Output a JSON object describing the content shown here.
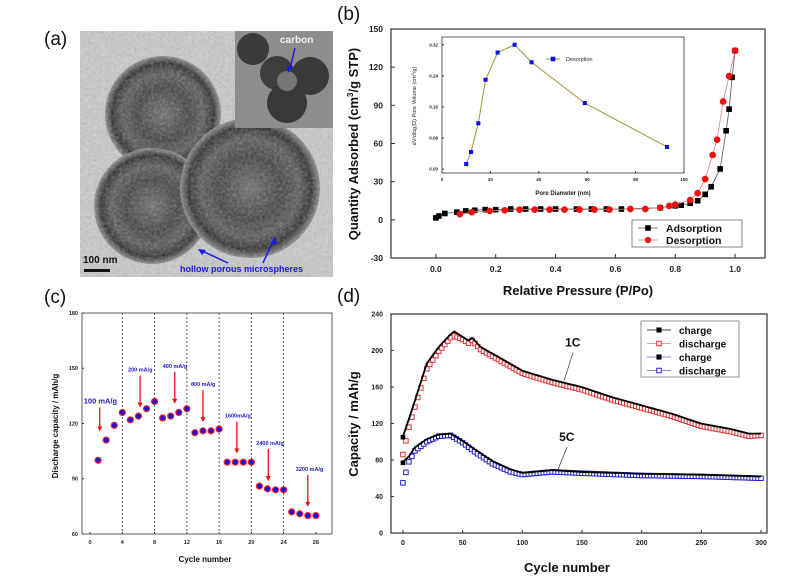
{
  "figure": {
    "panel_labels": {
      "a": "(a)",
      "b": "(b)",
      "c": "(c)",
      "d": "(d)"
    },
    "tem_image": {
      "scale_bar": "100 nm",
      "annotation_main": "hollow porous microspheres",
      "annotation_inset": "carbon",
      "colors": {
        "annotation": "#1a1ae6"
      }
    }
  },
  "chart_data": [
    {
      "id": "b",
      "type": "scatter",
      "title": "",
      "xlabel": "Relative Pressure (P/Po)",
      "ylabel": "Quantity Adsorbed (cm3/g STP)",
      "ylabel_parts": {
        "pre": "Quantity Adsorbed (cm",
        "sup": "3",
        "post": "/g STP)"
      },
      "xlim": [
        -0.15,
        1.1
      ],
      "ylim": [
        -30,
        150
      ],
      "xticks": [
        0.0,
        0.2,
        0.4,
        0.6,
        0.8,
        1.0
      ],
      "xtick_labels": [
        "0.0",
        "0.2",
        "0.4",
        "0.6",
        "0.8",
        "1.0"
      ],
      "yticks": [
        -30,
        0,
        30,
        60,
        90,
        120,
        150
      ],
      "ytick_labels": [
        "-30",
        "0",
        "30",
        "60",
        "90",
        "120",
        "150"
      ],
      "grid": false,
      "legend_position": "bottom-right",
      "series": [
        {
          "name": "Adsorption",
          "marker": "square",
          "color": "#000000",
          "line_color": "#555555",
          "x": [
            0.0,
            0.01,
            0.03,
            0.07,
            0.1,
            0.13,
            0.165,
            0.2,
            0.25,
            0.3,
            0.35,
            0.4,
            0.47,
            0.52,
            0.57,
            0.62,
            0.75,
            0.8,
            0.82,
            0.85,
            0.875,
            0.9,
            0.92,
            0.95,
            0.97,
            0.98,
            0.99,
            1.0
          ],
          "y": [
            1.5,
            3,
            5,
            6,
            7,
            7.5,
            8,
            8,
            8.5,
            8.5,
            8.5,
            8.5,
            8.5,
            8.5,
            8.5,
            8.5,
            9.5,
            11,
            11.5,
            13,
            15,
            20,
            26,
            40,
            70,
            87,
            112,
            133
          ]
        },
        {
          "name": "Desorption",
          "marker": "circle",
          "color": "#ee1111",
          "line_color": "#e88080",
          "x": [
            0.08,
            0.12,
            0.18,
            0.23,
            0.28,
            0.33,
            0.38,
            0.43,
            0.48,
            0.53,
            0.58,
            0.65,
            0.7,
            0.75,
            0.78,
            0.8,
            0.85,
            0.875,
            0.9,
            0.925,
            0.94,
            0.96,
            0.98,
            1.0
          ],
          "y": [
            4.5,
            6,
            7,
            7.5,
            8,
            8,
            8,
            8,
            8,
            8,
            8,
            8.5,
            8.5,
            9.5,
            11,
            12,
            15.5,
            21,
            32,
            51,
            63,
            93,
            113,
            133
          ]
        }
      ],
      "inset": {
        "type": "line",
        "xlabel": "Pore Diameter (nm)",
        "ylabel": "dV/dlog(D) Pore Volume (cm3/g)",
        "ylabel_parts": {
          "pre": "dV/dlog(D) Pore Volume (cm",
          "sup": "3",
          "post": "/g)"
        },
        "xlim": [
          0,
          100
        ],
        "ylim": [
          -0.01,
          0.34
        ],
        "xticks": [
          0,
          20,
          40,
          60,
          80,
          100
        ],
        "xtick_labels": [
          "0",
          "20",
          "40",
          "60",
          "80",
          "100"
        ],
        "yticks": [
          0.0,
          0.08,
          0.16,
          0.24,
          0.32
        ],
        "ytick_labels": [
          "0.00",
          "0.08",
          "0.16",
          "0.24",
          "0.32"
        ],
        "legend_position": "top-right",
        "series": [
          {
            "name": "Desorption",
            "marker": "square",
            "color": "#1010ee",
            "line_color": "#9a9a30",
            "x": [
              10,
              12,
              15,
              18,
              23,
              30,
              37,
              59,
              93
            ],
            "y": [
              0.013,
              0.044,
              0.118,
              0.23,
              0.3,
              0.32,
              0.275,
              0.17,
              0.057
            ]
          }
        ]
      }
    },
    {
      "id": "c",
      "type": "scatter",
      "title": "",
      "xlabel": "Cycle number",
      "ylabel": "Discharge capacity / mAh/g",
      "xlim": [
        -1,
        30
      ],
      "ylim": [
        60,
        180
      ],
      "xticks": [
        0,
        4,
        8,
        12,
        16,
        20,
        24,
        28
      ],
      "xtick_labels": [
        "0",
        "4",
        "8",
        "12",
        "16",
        "20",
        "24",
        "28"
      ],
      "yticks": [
        60,
        90,
        120,
        150,
        180
      ],
      "ytick_labels": [
        "60",
        "90",
        "120",
        "150",
        "180"
      ],
      "grid": false,
      "vertical_dashed_lines_at": [
        4,
        8,
        12,
        16,
        20,
        24
      ],
      "series": [
        {
          "name": "Discharge capacity",
          "marker": "circle",
          "color": "#1a10dd",
          "edge_color": "#ee2222",
          "x": [
            1,
            2,
            3,
            4,
            5,
            6,
            7,
            8,
            9,
            10,
            11,
            12,
            13,
            14,
            15,
            16,
            17,
            18,
            19,
            20,
            21,
            22,
            23,
            24,
            25,
            26,
            27,
            28
          ],
          "y": [
            100,
            111,
            119,
            126,
            122,
            124,
            128,
            132,
            123,
            124,
            126,
            128,
            115,
            116,
            116,
            117,
            99,
            99,
            99,
            99,
            86,
            84.5,
            84,
            84,
            72,
            71,
            70,
            70
          ]
        }
      ],
      "annotations": [
        {
          "text": "100 mA/g",
          "arrow_x": 1.2,
          "arrow_to_y": 113
        },
        {
          "text": "200 mA/g",
          "arrow_x": 6.2,
          "arrow_to_y": 126
        },
        {
          "text": "400 mA/g",
          "arrow_x": 10.5,
          "arrow_to_y": 128
        },
        {
          "text": "800 mA/g",
          "arrow_x": 14,
          "arrow_to_y": 118
        },
        {
          "text": "1600mA/g",
          "arrow_x": 18.2,
          "arrow_to_y": 101
        },
        {
          "text": "2400 mA/g",
          "arrow_x": 22.1,
          "arrow_to_y": 86
        },
        {
          "text": "3200 mA/g",
          "arrow_x": 27,
          "arrow_to_y": 72
        }
      ],
      "annotation_colors": {
        "text": "#1a1acc",
        "arrow": "#ee1111"
      }
    },
    {
      "id": "d",
      "type": "line",
      "title": "",
      "xlabel": "Cycle number",
      "ylabel": "Capacity / mAh/g",
      "xlim": [
        -10,
        305
      ],
      "ylim": [
        0,
        240
      ],
      "xticks": [
        0,
        50,
        100,
        150,
        200,
        250,
        300
      ],
      "xtick_labels": [
        "0",
        "50",
        "100",
        "150",
        "200",
        "250",
        "300"
      ],
      "yticks": [
        0,
        40,
        80,
        120,
        160,
        200,
        240
      ],
      "ytick_labels": [
        "0",
        "40",
        "80",
        "120",
        "160",
        "200",
        "240"
      ],
      "grid": false,
      "legend_position": "top-right",
      "series": [
        {
          "name": "charge",
          "rate": "1C",
          "marker": "filled-square",
          "color": "#000000",
          "line_color": "#000000",
          "x": [
            0,
            5,
            10,
            20,
            30,
            40,
            43,
            50,
            55,
            58,
            65,
            80,
            100,
            125,
            150,
            175,
            200,
            225,
            250,
            275,
            290,
            300
          ],
          "y": [
            105,
            124,
            144,
            185,
            203,
            217,
            220,
            214,
            210,
            213,
            203,
            192,
            177,
            167,
            159,
            148,
            139,
            130,
            119,
            113,
            108,
            108
          ]
        },
        {
          "name": "discharge",
          "rate": "1C",
          "marker": "open-square",
          "color": "#dd3030",
          "line_color": "#e88080",
          "x": [
            0,
            5,
            10,
            20,
            30,
            40,
            43,
            50,
            55,
            58,
            65,
            80,
            100,
            125,
            150,
            175,
            200,
            225,
            250,
            275,
            290,
            300
          ],
          "y": [
            86,
            116,
            138,
            180,
            199,
            214,
            216,
            212,
            208,
            211,
            201,
            190,
            175,
            165,
            157,
            146,
            137,
            128,
            117,
            111,
            106,
            107
          ]
        },
        {
          "name": "charge",
          "rate": "5C",
          "marker": "filled-square",
          "color": "#000000",
          "line_color": "#6060cc",
          "x": [
            0,
            5,
            10,
            20,
            30,
            40,
            50,
            60,
            75,
            90,
            100,
            125,
            150,
            200,
            250,
            300
          ],
          "y": [
            77,
            83,
            93,
            102,
            107,
            108,
            100,
            91,
            78,
            69,
            65,
            68,
            66,
            64,
            63,
            61
          ]
        },
        {
          "name": "discharge",
          "rate": "5C",
          "marker": "open-square",
          "color": "#2020cc",
          "line_color": "#6060cc",
          "x": [
            0,
            5,
            10,
            20,
            30,
            40,
            50,
            60,
            75,
            90,
            100,
            125,
            150,
            200,
            250,
            300
          ],
          "y": [
            55,
            78,
            90,
            100,
            106,
            107,
            99,
            89,
            76,
            67,
            64,
            67,
            65.5,
            63,
            62,
            60
          ]
        }
      ],
      "annotations": [
        {
          "text": "1C",
          "x": 135,
          "y": 165
        },
        {
          "text": "5C",
          "x": 130,
          "y": 68
        }
      ]
    }
  ]
}
